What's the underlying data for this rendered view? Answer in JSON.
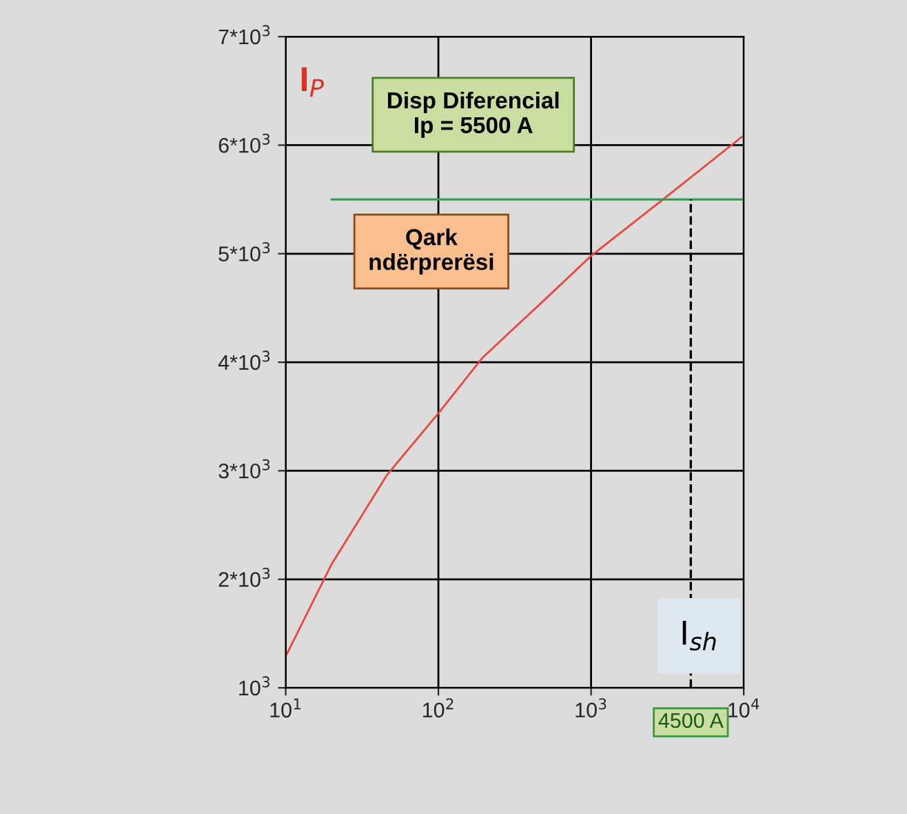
{
  "chart_data": {
    "type": "line",
    "series": [
      {
        "color": "#e8463c",
        "x": [
          10,
          20,
          46,
          100,
          194,
          527,
          1000,
          2780,
          10000
        ],
        "values": [
          1290,
          2140,
          2960,
          3530,
          4040,
          4610,
          4980,
          5470,
          6090
        ]
      }
    ],
    "log": "x",
    "xlim": [
      10,
      10000
    ],
    "xticks": [
      {
        "value": 10,
        "label": "10$^{1}$"
      },
      {
        "value": 100,
        "label": "10$^{2}$"
      },
      {
        "value": 1000,
        "label": "10$^{3}$"
      },
      {
        "value": 10000,
        "label": "10$^{4}$"
      }
    ],
    "ylim": [
      1000,
      7000
    ],
    "yticks": [
      {
        "value": 1000,
        "label": "10$^{3}$"
      },
      {
        "value": 2000,
        "label": "2*10$^{3}$"
      },
      {
        "value": 3000,
        "label": "3*10$^{3}$"
      },
      {
        "value": 4000,
        "label": "4*10$^{3}$"
      },
      {
        "value": 5000,
        "label": "5*10$^{3}$"
      },
      {
        "value": 6000,
        "label": "6*10$^{3}$"
      },
      {
        "value": 7000,
        "label": "7*10$^{3}$"
      }
    ],
    "grid": true,
    "marker": "none",
    "line_style": "solid",
    "legend": false,
    "ref_lines": [
      {
        "axis": "y",
        "value": 5500,
        "label": null,
        "color": "#3a9a5a",
        "line_style": "solid"
      },
      {
        "axis": "x",
        "value": 4500,
        "label": null,
        "color": "#000000",
        "line_style": "dashed"
      }
    ],
    "annotations": [
      "I$_{P}$",
      "Disp Diferencial\nIp = 5500 A",
      "Qark\nndërprerësi",
      "I$_{sh}$",
      {
        "text": "4500 A",
        "x": 4500,
        "y": 1000
      }
    ]
  }
}
